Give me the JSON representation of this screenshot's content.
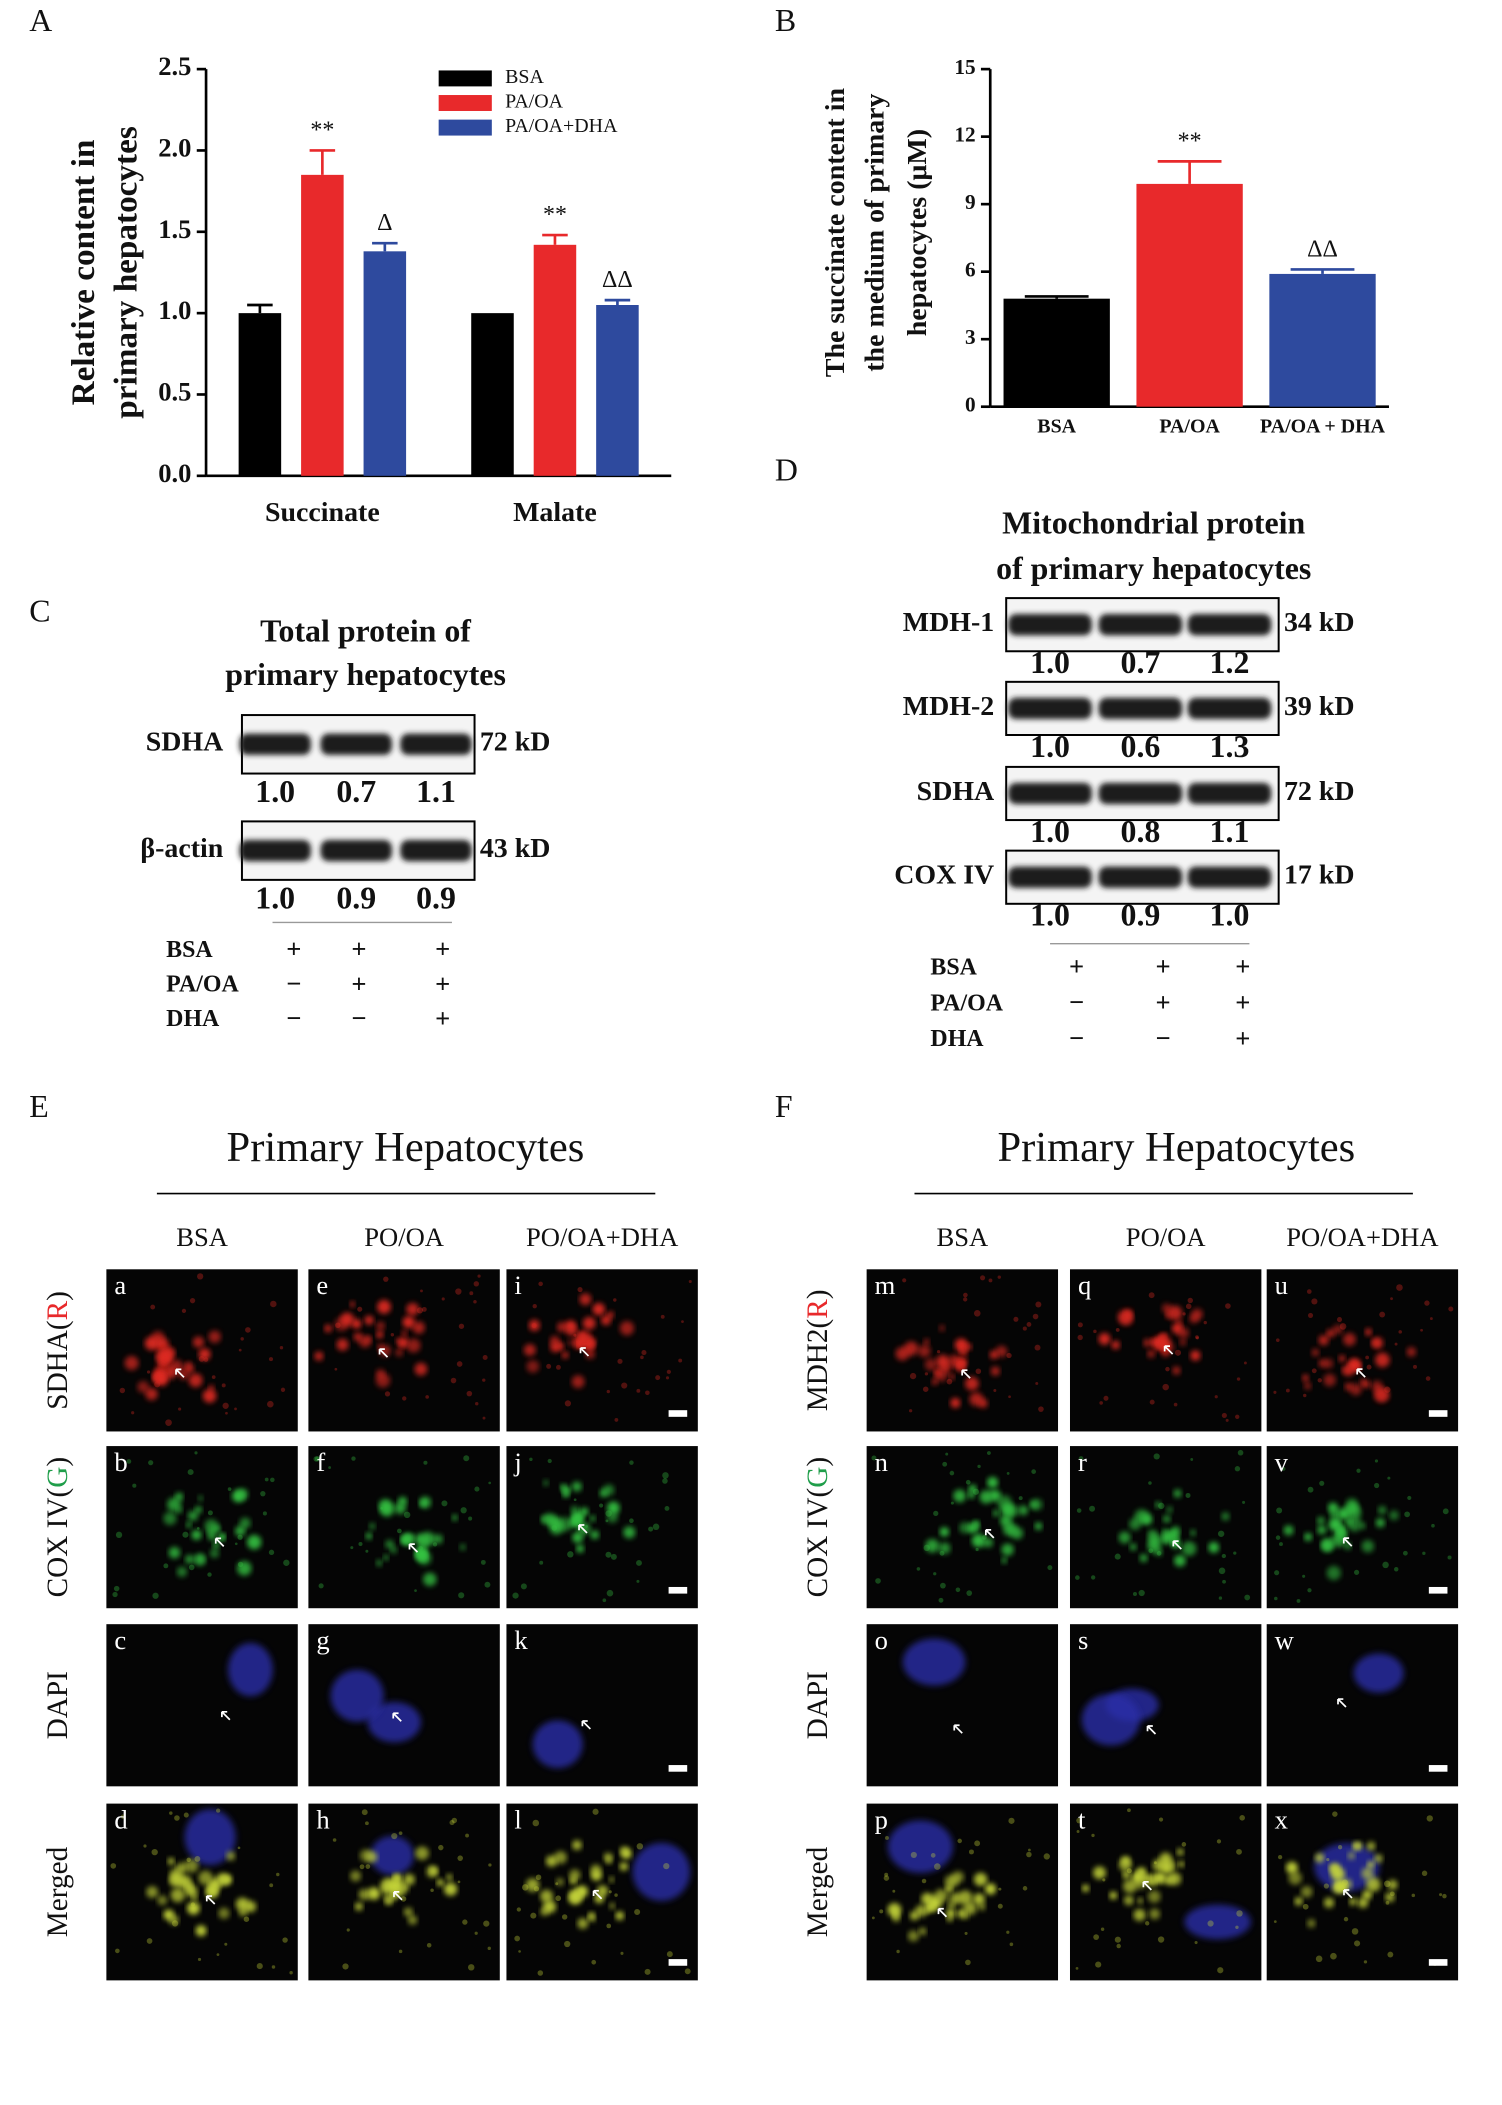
{
  "chart_data": [
    {
      "type": "bar",
      "panel": "A",
      "y_label": [
        "Relative content in",
        "primary hepatocytes"
      ],
      "categories": [
        "Succinate",
        "Malate"
      ],
      "series": [
        {
          "name": "BSA",
          "color": "#000000",
          "values": [
            1.0,
            1.0
          ],
          "errors": [
            0.05,
            0
          ],
          "annotations": [
            null,
            null
          ]
        },
        {
          "name": "PA/OA",
          "color": "#e8292b",
          "values": [
            1.85,
            1.42
          ],
          "errors": [
            0.15,
            0.06
          ],
          "annotations": [
            "**",
            "**"
          ]
        },
        {
          "name": "PA/OA+DHA",
          "color": "#2e4a9e",
          "values": [
            1.38,
            1.05
          ],
          "errors": [
            0.05,
            0.03
          ],
          "annotations": [
            "Δ",
            "ΔΔ"
          ]
        }
      ],
      "ylim": [
        0,
        2.5
      ],
      "yticks": [
        {
          "value": 0,
          "label": "0.0"
        },
        {
          "value": 0.5,
          "label": "0.5"
        },
        {
          "value": 1,
          "label": "1.0"
        },
        {
          "value": 1.5,
          "label": "1.5"
        },
        {
          "value": 2,
          "label": "2.0"
        },
        {
          "value": 2.5,
          "label": "2.5"
        }
      ],
      "legend": "top-right"
    },
    {
      "type": "bar",
      "panel": "B",
      "y_label": [
        "The succinate content in",
        "the medium of  primary",
        "hepatocytes (μM)"
      ],
      "categories": [
        "BSA",
        "PA/OA",
        "PA/OA + DHA"
      ],
      "values": [
        4.8,
        9.9,
        5.9
      ],
      "errors": [
        0.1,
        1.0,
        0.2
      ],
      "colors": [
        "#000000",
        "#e8292b",
        "#2e4a9e"
      ],
      "annotations": [
        null,
        "**",
        "ΔΔ"
      ],
      "ylim": [
        0,
        15
      ],
      "yticks": [
        0,
        3,
        6,
        9,
        12,
        15
      ]
    }
  ],
  "blots": [
    {
      "panel": "C",
      "title": [
        "Total protein of",
        "primary hepatocytes"
      ],
      "rows": [
        {
          "protein": "SDHA",
          "size": "72 kD",
          "values": [
            "1.0",
            "0.7",
            "1.1"
          ]
        },
        {
          "protein": "β-actin",
          "size": "43 kD",
          "values": [
            "1.0",
            "0.9",
            "0.9"
          ]
        }
      ],
      "treatments": [
        {
          "name": "BSA",
          "marks": [
            "+",
            "+",
            "+"
          ]
        },
        {
          "name": "PA/OA",
          "marks": [
            "−",
            "+",
            "+"
          ]
        },
        {
          "name": "DHA",
          "marks": [
            "−",
            "−",
            "+"
          ]
        }
      ]
    },
    {
      "panel": "D",
      "title": [
        "Mitochondrial protein",
        "of primary hepatocytes"
      ],
      "rows": [
        {
          "protein": "MDH-1",
          "size": "34 kD",
          "values": [
            "1.0",
            "0.7",
            "1.2"
          ]
        },
        {
          "protein": "MDH-2",
          "size": "39 kD",
          "values": [
            "1.0",
            "0.6",
            "1.3"
          ]
        },
        {
          "protein": "SDHA",
          "size": "72 kD",
          "values": [
            "1.0",
            "0.8",
            "1.1"
          ]
        },
        {
          "protein": "COX IV",
          "size": "17 kD",
          "values": [
            "1.0",
            "0.9",
            "1.0"
          ]
        }
      ],
      "treatments": [
        {
          "name": "BSA",
          "marks": [
            "+",
            "+",
            "+"
          ]
        },
        {
          "name": "PA/OA",
          "marks": [
            "−",
            "+",
            "+"
          ]
        },
        {
          "name": "DHA",
          "marks": [
            "−",
            "−",
            "+"
          ]
        }
      ]
    }
  ],
  "imaging": [
    {
      "panel": "E",
      "title": "Primary Hepatocytes",
      "columns": [
        "BSA",
        "PO/OA",
        "PO/OA+DHA"
      ],
      "row_labels": [
        [
          "SDHA(",
          "R",
          ")"
        ],
        [
          "COX IV(",
          "G",
          ")"
        ],
        [
          "DAPI"
        ],
        [
          "Merged"
        ]
      ],
      "letters": [
        [
          "a",
          "e",
          "i"
        ],
        [
          "b",
          "f",
          "j"
        ],
        [
          "c",
          "g",
          "k"
        ],
        [
          "d",
          "h",
          "l"
        ]
      ]
    },
    {
      "panel": "F",
      "title": "Primary Hepatocytes",
      "columns": [
        "BSA",
        "PO/OA",
        "PO/OA+DHA"
      ],
      "row_labels": [
        [
          "MDH2(",
          "R",
          ")"
        ],
        [
          "COX IV(",
          "G",
          ")"
        ],
        [
          "DAPI"
        ],
        [
          "Merged"
        ]
      ],
      "letters": [
        [
          "m",
          "q",
          "u"
        ],
        [
          "n",
          "r",
          "v"
        ],
        [
          "o",
          "s",
          "w"
        ],
        [
          "p",
          "t",
          "x"
        ]
      ]
    }
  ]
}
